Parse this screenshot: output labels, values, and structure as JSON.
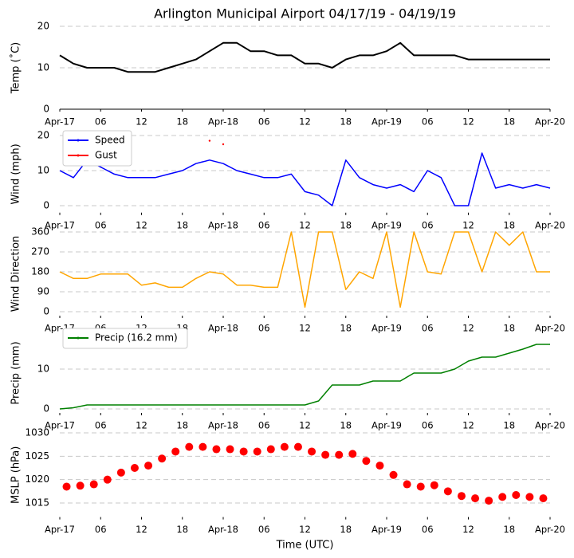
{
  "chart_data": [
    {
      "type": "line",
      "title": "Arlington Municipal Airport 04/17/19 - 04/19/19",
      "ylabel": "Temp (˚C)",
      "x": [
        "2019-04-17T00",
        "2019-04-17T02",
        "2019-04-17T04",
        "2019-04-17T06",
        "2019-04-17T08",
        "2019-04-17T10",
        "2019-04-17T12",
        "2019-04-17T14",
        "2019-04-17T16",
        "2019-04-17T18",
        "2019-04-17T20",
        "2019-04-17T22",
        "2019-04-18T00",
        "2019-04-18T02",
        "2019-04-18T04",
        "2019-04-18T06",
        "2019-04-18T08",
        "2019-04-18T10",
        "2019-04-18T12",
        "2019-04-18T14",
        "2019-04-18T16",
        "2019-04-18T18",
        "2019-04-18T20",
        "2019-04-18T22",
        "2019-04-19T00",
        "2019-04-19T02",
        "2019-04-19T04",
        "2019-04-19T06",
        "2019-04-19T08",
        "2019-04-19T10",
        "2019-04-19T12",
        "2019-04-19T14",
        "2019-04-19T16",
        "2019-04-19T18",
        "2019-04-19T20",
        "2019-04-19T22",
        "2019-04-20T00"
      ],
      "series": [
        {
          "color": "#000000",
          "values": [
            13,
            11,
            10,
            10,
            10,
            9,
            9,
            9,
            10,
            11,
            12,
            14,
            16,
            16,
            14,
            14,
            13,
            13,
            11,
            11,
            10,
            12,
            13,
            13,
            14,
            16,
            13,
            13,
            13,
            13,
            12,
            12,
            12,
            12,
            12,
            12,
            12
          ]
        }
      ],
      "xlim": [
        "2019-04-17T00",
        "2019-04-20T00"
      ],
      "xticks": [
        {
          "value": "2019-04-17T00",
          "label": "Apr-17"
        },
        {
          "value": "2019-04-17T06",
          "label": "06"
        },
        {
          "value": "2019-04-17T12",
          "label": "12"
        },
        {
          "value": "2019-04-17T18",
          "label": "18"
        },
        {
          "value": "2019-04-18T00",
          "label": "Apr-18"
        },
        {
          "value": "2019-04-18T06",
          "label": "06"
        },
        {
          "value": "2019-04-18T12",
          "label": "12"
        },
        {
          "value": "2019-04-18T18",
          "label": "18"
        },
        {
          "value": "2019-04-19T00",
          "label": "Apr-19"
        },
        {
          "value": "2019-04-19T06",
          "label": "06"
        },
        {
          "value": "2019-04-19T12",
          "label": "12"
        },
        {
          "value": "2019-04-19T18",
          "label": "18"
        },
        {
          "value": "2019-04-20T00",
          "label": "Apr-20"
        }
      ],
      "ylim": [
        0,
        20
      ],
      "yticks": [
        0,
        10,
        20
      ],
      "grid": true
    },
    {
      "type": "line",
      "ylabel": "Wind (mph)",
      "x": [
        "2019-04-17T00",
        "2019-04-17T02",
        "2019-04-17T04",
        "2019-04-17T06",
        "2019-04-17T08",
        "2019-04-17T10",
        "2019-04-17T12",
        "2019-04-17T14",
        "2019-04-17T16",
        "2019-04-17T18",
        "2019-04-17T20",
        "2019-04-17T22",
        "2019-04-18T00",
        "2019-04-18T02",
        "2019-04-18T04",
        "2019-04-18T06",
        "2019-04-18T08",
        "2019-04-18T10",
        "2019-04-18T12",
        "2019-04-18T14",
        "2019-04-18T16",
        "2019-04-18T18",
        "2019-04-18T20",
        "2019-04-18T22",
        "2019-04-19T00",
        "2019-04-19T02",
        "2019-04-19T04",
        "2019-04-19T06",
        "2019-04-19T08",
        "2019-04-19T10",
        "2019-04-19T12",
        "2019-04-19T14",
        "2019-04-19T16",
        "2019-04-19T18",
        "2019-04-19T20",
        "2019-04-19T22",
        "2019-04-20T00"
      ],
      "series": [
        {
          "name": "Speed",
          "color": "#0000ff",
          "values": [
            10,
            8,
            13,
            11,
            9,
            8,
            8,
            8,
            9,
            10,
            12,
            13,
            12,
            10,
            9,
            8,
            8,
            9,
            4,
            3,
            0,
            13,
            8,
            6,
            5,
            6,
            4,
            10,
            8,
            0,
            0,
            15,
            5,
            6,
            5,
            6,
            5
          ]
        },
        {
          "name": "Gust",
          "color": "#ff0000",
          "linestyle": "none",
          "values": [
            null,
            null,
            null,
            null,
            null,
            null,
            null,
            null,
            null,
            null,
            null,
            18.5,
            17.5,
            null,
            null,
            null,
            null,
            null,
            null,
            null,
            null,
            null,
            null,
            null,
            null,
            null,
            null,
            null,
            null,
            null,
            null,
            null,
            null,
            null,
            null,
            null,
            null
          ]
        }
      ],
      "xlim": [
        "2019-04-17T00",
        "2019-04-20T00"
      ],
      "xticks": [
        {
          "value": "2019-04-17T00",
          "label": "Apr-17"
        },
        {
          "value": "2019-04-17T06",
          "label": "06"
        },
        {
          "value": "2019-04-17T12",
          "label": "12"
        },
        {
          "value": "2019-04-17T18",
          "label": "18"
        },
        {
          "value": "2019-04-18T00",
          "label": "Apr-18"
        },
        {
          "value": "2019-04-18T06",
          "label": "06"
        },
        {
          "value": "2019-04-18T12",
          "label": "12"
        },
        {
          "value": "2019-04-18T18",
          "label": "18"
        },
        {
          "value": "2019-04-19T00",
          "label": "Apr-19"
        },
        {
          "value": "2019-04-19T06",
          "label": "06"
        },
        {
          "value": "2019-04-19T12",
          "label": "12"
        },
        {
          "value": "2019-04-19T18",
          "label": "18"
        },
        {
          "value": "2019-04-20T00",
          "label": "Apr-20"
        }
      ],
      "ylim": [
        -2,
        20
      ],
      "yticks": [
        0,
        10,
        20
      ],
      "grid": true,
      "legend": "upper left"
    },
    {
      "type": "line",
      "ylabel": "Wind Direction",
      "x": [
        "2019-04-17T00",
        "2019-04-17T02",
        "2019-04-17T04",
        "2019-04-17T06",
        "2019-04-17T08",
        "2019-04-17T10",
        "2019-04-17T12",
        "2019-04-17T14",
        "2019-04-17T16",
        "2019-04-17T18",
        "2019-04-17T20",
        "2019-04-17T22",
        "2019-04-18T00",
        "2019-04-18T02",
        "2019-04-18T04",
        "2019-04-18T06",
        "2019-04-18T08",
        "2019-04-18T10",
        "2019-04-18T12",
        "2019-04-18T14",
        "2019-04-18T16",
        "2019-04-18T18",
        "2019-04-18T20",
        "2019-04-18T22",
        "2019-04-19T00",
        "2019-04-19T02",
        "2019-04-19T04",
        "2019-04-19T06",
        "2019-04-19T08",
        "2019-04-19T10",
        "2019-04-19T12",
        "2019-04-19T14",
        "2019-04-19T16",
        "2019-04-19T18",
        "2019-04-19T20",
        "2019-04-19T22",
        "2019-04-20T00"
      ],
      "series": [
        {
          "color": "#ffa500",
          "values": [
            180,
            150,
            150,
            170,
            170,
            170,
            120,
            130,
            110,
            110,
            150,
            180,
            170,
            120,
            120,
            110,
            110,
            360,
            20,
            360,
            360,
            100,
            180,
            150,
            360,
            20,
            360,
            180,
            170,
            360,
            360,
            180,
            360,
            300,
            360,
            180,
            180
          ]
        }
      ],
      "xlim": [
        "2019-04-17T00",
        "2019-04-20T00"
      ],
      "xticks": [
        {
          "value": "2019-04-17T00",
          "label": "Apr-17"
        },
        {
          "value": "2019-04-17T06",
          "label": "06"
        },
        {
          "value": "2019-04-17T12",
          "label": "12"
        },
        {
          "value": "2019-04-17T18",
          "label": "18"
        },
        {
          "value": "2019-04-18T00",
          "label": "Apr-18"
        },
        {
          "value": "2019-04-18T06",
          "label": "06"
        },
        {
          "value": "2019-04-18T12",
          "label": "12"
        },
        {
          "value": "2019-04-18T18",
          "label": "18"
        },
        {
          "value": "2019-04-19T00",
          "label": "Apr-19"
        },
        {
          "value": "2019-04-19T06",
          "label": "06"
        },
        {
          "value": "2019-04-19T12",
          "label": "12"
        },
        {
          "value": "2019-04-19T18",
          "label": "18"
        },
        {
          "value": "2019-04-20T00",
          "label": "Apr-20"
        }
      ],
      "ylim": [
        -18,
        360
      ],
      "yticks": [
        0,
        90,
        180,
        270,
        360
      ],
      "grid": true
    },
    {
      "type": "line",
      "ylabel": "Precip (mm)",
      "x": [
        "2019-04-17T00",
        "2019-04-17T02",
        "2019-04-17T04",
        "2019-04-17T06",
        "2019-04-17T08",
        "2019-04-17T10",
        "2019-04-17T12",
        "2019-04-17T14",
        "2019-04-17T16",
        "2019-04-17T18",
        "2019-04-17T20",
        "2019-04-17T22",
        "2019-04-18T00",
        "2019-04-18T02",
        "2019-04-18T04",
        "2019-04-18T06",
        "2019-04-18T08",
        "2019-04-18T10",
        "2019-04-18T12",
        "2019-04-18T14",
        "2019-04-18T16",
        "2019-04-18T18",
        "2019-04-18T20",
        "2019-04-18T22",
        "2019-04-19T00",
        "2019-04-19T02",
        "2019-04-19T04",
        "2019-04-19T06",
        "2019-04-19T08",
        "2019-04-19T10",
        "2019-04-19T12",
        "2019-04-19T14",
        "2019-04-19T16",
        "2019-04-19T18",
        "2019-04-19T20",
        "2019-04-19T22",
        "2019-04-20T00"
      ],
      "series": [
        {
          "name": "Precip (16.2 mm)",
          "color": "#008000",
          "values": [
            0,
            0.3,
            1,
            1,
            1,
            1,
            1,
            1,
            1,
            1,
            1,
            1,
            1,
            1,
            1,
            1,
            1,
            1,
            1,
            2,
            6,
            6,
            6,
            7,
            7,
            7,
            9,
            9,
            9,
            10,
            12,
            13,
            13,
            14,
            15,
            16.2,
            16.2
          ]
        }
      ],
      "xlim": [
        "2019-04-17T00",
        "2019-04-20T00"
      ],
      "xticks": [
        {
          "value": "2019-04-17T00",
          "label": "Apr-17"
        },
        {
          "value": "2019-04-17T06",
          "label": "06"
        },
        {
          "value": "2019-04-17T12",
          "label": "12"
        },
        {
          "value": "2019-04-17T18",
          "label": "18"
        },
        {
          "value": "2019-04-18T00",
          "label": "Apr-18"
        },
        {
          "value": "2019-04-18T06",
          "label": "06"
        },
        {
          "value": "2019-04-18T12",
          "label": "12"
        },
        {
          "value": "2019-04-18T18",
          "label": "18"
        },
        {
          "value": "2019-04-19T00",
          "label": "Apr-19"
        },
        {
          "value": "2019-04-19T06",
          "label": "06"
        },
        {
          "value": "2019-04-19T12",
          "label": "12"
        },
        {
          "value": "2019-04-19T18",
          "label": "18"
        },
        {
          "value": "2019-04-20T00",
          "label": "Apr-20"
        }
      ],
      "ylim": [
        -1,
        19
      ],
      "yticks": [
        0,
        10
      ],
      "grid": true,
      "legend": "upper left"
    },
    {
      "type": "line",
      "ylabel": "MSLP (hPa)",
      "xlabel": "Time (UTC)",
      "x": [
        "2019-04-17T01",
        "2019-04-17T03",
        "2019-04-17T05",
        "2019-04-17T07",
        "2019-04-17T09",
        "2019-04-17T11",
        "2019-04-17T13",
        "2019-04-17T15",
        "2019-04-17T17",
        "2019-04-17T19",
        "2019-04-17T21",
        "2019-04-17T23",
        "2019-04-18T01",
        "2019-04-18T03",
        "2019-04-18T05",
        "2019-04-18T07",
        "2019-04-18T09",
        "2019-04-18T11",
        "2019-04-18T13",
        "2019-04-18T15",
        "2019-04-18T17",
        "2019-04-18T19",
        "2019-04-18T21",
        "2019-04-18T23",
        "2019-04-19T01",
        "2019-04-19T03",
        "2019-04-19T05",
        "2019-04-19T07",
        "2019-04-19T09",
        "2019-04-19T11",
        "2019-04-19T13",
        "2019-04-19T15",
        "2019-04-19T17",
        "2019-04-19T19",
        "2019-04-19T21",
        "2019-04-19T23"
      ],
      "series": [
        {
          "color": "#ff0000",
          "linestyle": "none",
          "marker": "o",
          "values": [
            1018.5,
            1018.7,
            1019,
            1020,
            1021.5,
            1022.5,
            1023,
            1024.5,
            1026,
            1027,
            1027,
            1026.5,
            1026.5,
            1026,
            1026,
            1026.5,
            1027,
            1027,
            1026,
            1025.3,
            1025.3,
            1025.5,
            1024,
            1023,
            1021,
            1019,
            1018.5,
            1018.8,
            1017.5,
            1016.5,
            1016,
            1015.5,
            1016.3,
            1016.7,
            1016.3,
            1016
          ]
        }
      ],
      "xlim": [
        "2019-04-17T00",
        "2019-04-20T00"
      ],
      "xticks": [
        {
          "value": "2019-04-17T00",
          "label": "Apr-17"
        },
        {
          "value": "2019-04-17T06",
          "label": "06"
        },
        {
          "value": "2019-04-17T12",
          "label": "12"
        },
        {
          "value": "2019-04-17T18",
          "label": "18"
        },
        {
          "value": "2019-04-18T00",
          "label": "Apr-18"
        },
        {
          "value": "2019-04-18T06",
          "label": "06"
        },
        {
          "value": "2019-04-18T12",
          "label": "12"
        },
        {
          "value": "2019-04-18T18",
          "label": "18"
        },
        {
          "value": "2019-04-19T00",
          "label": "Apr-19"
        },
        {
          "value": "2019-04-19T06",
          "label": "06"
        },
        {
          "value": "2019-04-19T12",
          "label": "12"
        },
        {
          "value": "2019-04-19T18",
          "label": "18"
        },
        {
          "value": "2019-04-20T00",
          "label": "Apr-20"
        }
      ],
      "ylim": [
        1012,
        1030
      ],
      "yticks": [
        1015,
        1020,
        1025,
        1030
      ],
      "grid": true
    }
  ]
}
